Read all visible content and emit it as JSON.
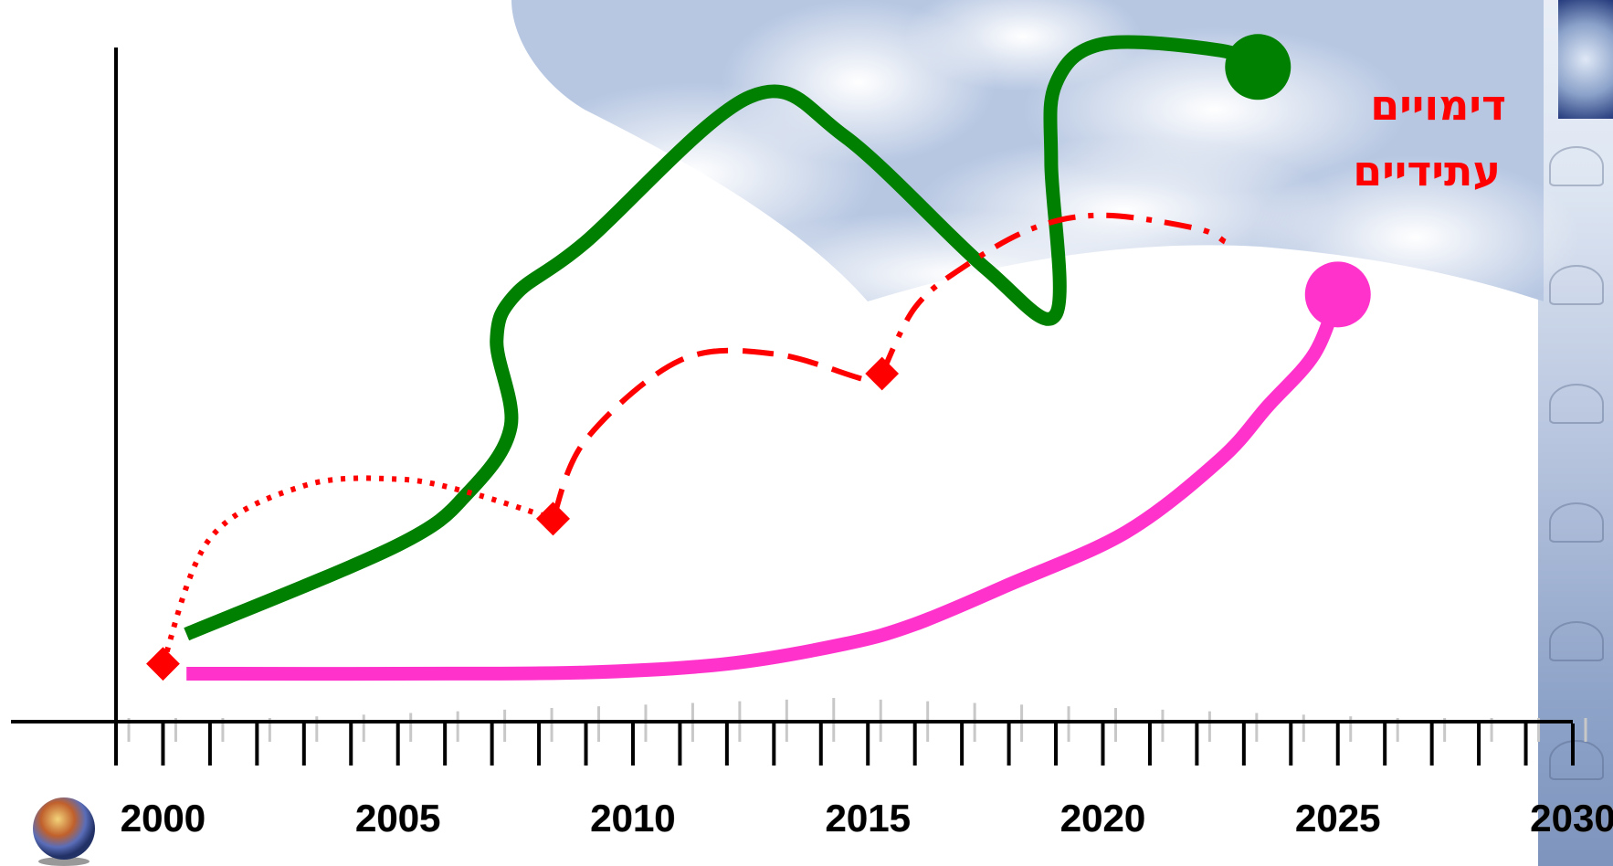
{
  "chart_data": {
    "type": "line",
    "title": "",
    "xlabel": "",
    "ylabel": "",
    "xlim": [
      1999,
      2030
    ],
    "ylim": [
      0,
      100
    ],
    "x_tick_labels": [
      "2000",
      "2005",
      "2010",
      "2015",
      "2020",
      "2025",
      "2030"
    ],
    "grid": false,
    "annotation": [
      "דימויים",
      "עתידיים"
    ],
    "series": [
      {
        "style": "solid",
        "color": "#008000",
        "end_marker": "circle",
        "points": [
          [
            2000.5,
            10.5
          ],
          [
            2005,
            24
          ],
          [
            2006.5,
            32
          ],
          [
            2007.4,
            42
          ],
          [
            2007.1,
            55
          ],
          [
            2007.5,
            62
          ],
          [
            2009,
            70
          ],
          [
            2012.5,
            92
          ],
          [
            2014.5,
            86
          ],
          [
            2017.5,
            66
          ],
          [
            2019,
            59
          ],
          [
            2018.9,
            82
          ],
          [
            2019,
            94
          ],
          [
            2020,
            100
          ],
          [
            2022.5,
            99
          ],
          [
            2023.3,
            96.5
          ]
        ]
      },
      {
        "style": "dotted",
        "color": "#ff0000",
        "marker": "diamond",
        "points": [
          [
            2000,
            6
          ],
          [
            2001,
            25
          ],
          [
            2003,
            33
          ],
          [
            2005,
            34
          ],
          [
            2006.5,
            32
          ],
          [
            2008.3,
            28
          ]
        ]
      },
      {
        "style": "dashed",
        "color": "#ff0000",
        "marker": "diamond",
        "points": [
          [
            2008.3,
            28
          ],
          [
            2009,
            40
          ],
          [
            2011,
            52
          ],
          [
            2013,
            53
          ],
          [
            2015,
            49
          ],
          [
            2015.3,
            50
          ]
        ]
      },
      {
        "style": "dash-dot",
        "color": "#ff0000",
        "points": [
          [
            2015.3,
            50
          ],
          [
            2016,
            60
          ],
          [
            2017,
            66
          ],
          [
            2018.5,
            72
          ],
          [
            2020,
            74
          ],
          [
            2022,
            72
          ],
          [
            2022.6,
            70
          ]
        ]
      },
      {
        "style": "solid",
        "color": "#ff33cc",
        "end_marker": "circle",
        "points": [
          [
            2000.5,
            4.5
          ],
          [
            2005,
            4.5
          ],
          [
            2009,
            4.7
          ],
          [
            2012,
            6
          ],
          [
            2014.5,
            9
          ],
          [
            2016,
            12
          ],
          [
            2018,
            18
          ],
          [
            2020.5,
            26
          ],
          [
            2022.5,
            37
          ],
          [
            2023.5,
            45
          ],
          [
            2024.5,
            53
          ],
          [
            2025,
            62
          ]
        ]
      }
    ]
  }
}
